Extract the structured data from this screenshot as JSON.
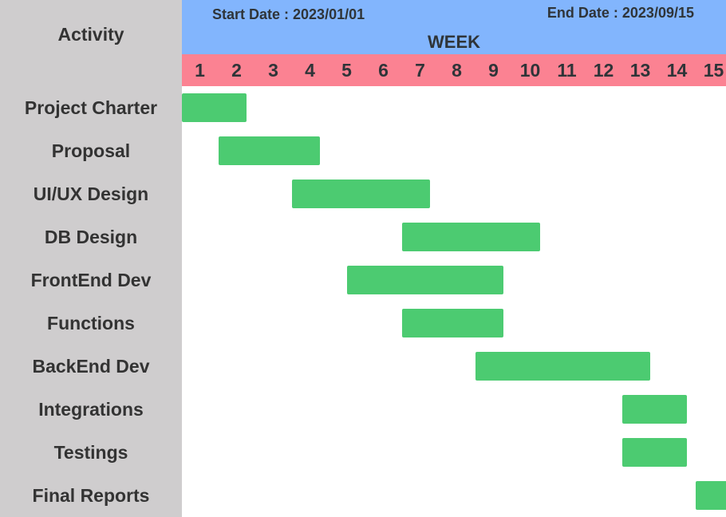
{
  "chart_data": {
    "type": "gantt",
    "header": {
      "start_date_label": "Start Date : 2023/01/01",
      "end_date_label": "End Date : 2023/09/15"
    },
    "axis_label": "WEEK",
    "activity_header": "Activity",
    "weeks": [
      "1",
      "2",
      "3",
      "4",
      "5",
      "6",
      "7",
      "8",
      "9",
      "10",
      "11",
      "12",
      "13",
      "14",
      "15"
    ],
    "tasks": [
      {
        "name": "Project Charter",
        "start": 1,
        "end": 2
      },
      {
        "name": "Proposal",
        "start": 2,
        "end": 4
      },
      {
        "name": "UI/UX Design",
        "start": 4,
        "end": 7
      },
      {
        "name": "DB Design",
        "start": 7,
        "end": 10
      },
      {
        "name": "FrontEnd Dev",
        "start": 5.5,
        "end": 9
      },
      {
        "name": "Functions",
        "start": 7,
        "end": 9
      },
      {
        "name": "BackEnd Dev",
        "start": 9,
        "end": 13
      },
      {
        "name": "Integrations",
        "start": 13,
        "end": 14
      },
      {
        "name": "Testings",
        "start": 13,
        "end": 14
      },
      {
        "name": "Final Reports",
        "start": 15,
        "end": 15
      }
    ]
  },
  "colors": {
    "sidebar": "#cfcdce",
    "header": "#82b5fd",
    "week_row": "#fb8292",
    "bar": "#4ccb71",
    "text": "#2f3438"
  }
}
